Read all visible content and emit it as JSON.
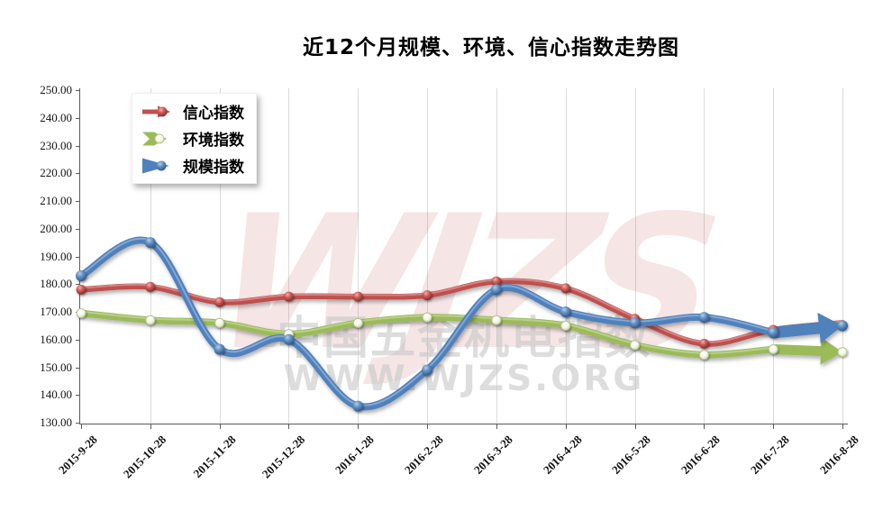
{
  "watermarks": {
    "logo": "WJZS",
    "cn": "中国五金机电指数",
    "url": "WWW.WJZS.ORG"
  },
  "chart_data": {
    "type": "line",
    "title": "近12个月规模、环境、信心指数走势图",
    "categories": [
      "2015-9-28",
      "2015-10-28",
      "2015-11-28",
      "2015-12-28",
      "2016-1-28",
      "2016-2-28",
      "2016-3-28",
      "2016-4-28",
      "2016-5-28",
      "2016-6-28",
      "2016-7-28",
      "2016-8-28"
    ],
    "series": [
      {
        "name": "信心指数",
        "color": "#C0504D",
        "marker": "red-ball",
        "end_arrow": false,
        "values": [
          178,
          179,
          173.5,
          175.5,
          175.5,
          176,
          181,
          178.5,
          167.5,
          158.5,
          163.5,
          166
        ]
      },
      {
        "name": "环境指数",
        "color": "#9BBB59",
        "marker": "white-ball",
        "end_arrow": true,
        "values": [
          169.5,
          167,
          166,
          162,
          166,
          168,
          167,
          165,
          158,
          154.5,
          156.5,
          155.5
        ]
      },
      {
        "name": "规模指数",
        "color": "#4F81BD",
        "marker": "blue-ball",
        "end_arrow": true,
        "values": [
          183,
          195,
          156.5,
          160,
          136,
          149,
          178,
          170,
          166,
          168,
          162.5,
          165
        ]
      }
    ],
    "ylim": [
      130,
      250
    ],
    "ytick_step": 10,
    "ytick_labels": [
      "130.00",
      "140.00",
      "150.00",
      "160.00",
      "170.00",
      "180.00",
      "190.00",
      "200.00",
      "210.00",
      "220.00",
      "230.00",
      "240.00",
      "250.00"
    ],
    "grid": "vertical",
    "legend_position": "top-left",
    "smooth": true
  }
}
